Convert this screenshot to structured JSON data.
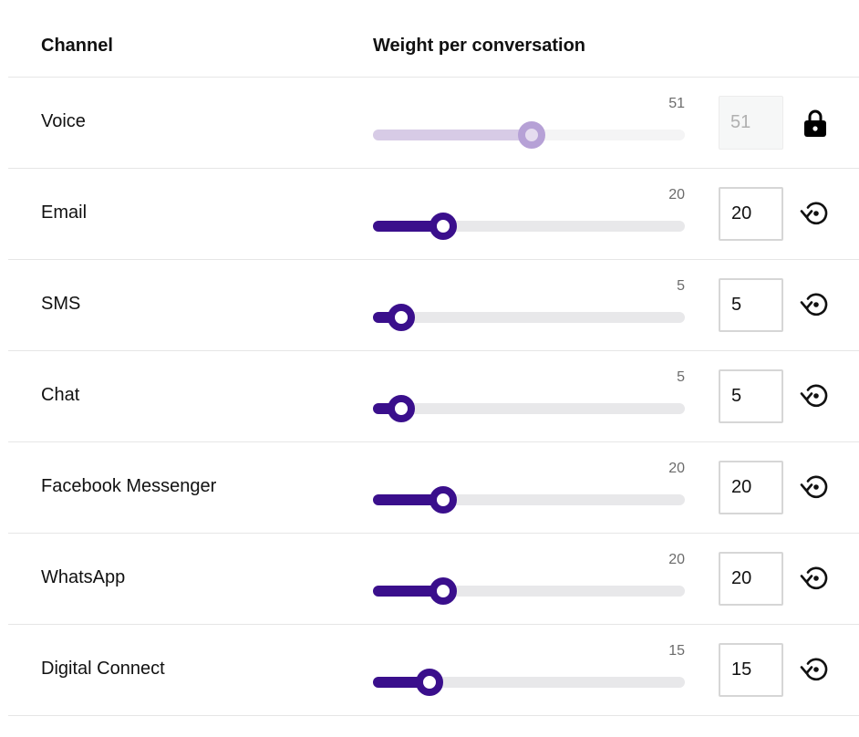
{
  "header": {
    "channel_label": "Channel",
    "weight_label": "Weight per conversation"
  },
  "slider": {
    "min": 0,
    "max": 100
  },
  "colors": {
    "accent": "#3a0f8c",
    "accent_disabled": "#b6a1d6",
    "track": "#e8e8ea"
  },
  "rows": [
    {
      "name": "Voice",
      "value": "51",
      "input_value": "51",
      "locked": true,
      "action_icon": "lock-icon"
    },
    {
      "name": "Email",
      "value": "20",
      "input_value": "20",
      "locked": false,
      "action_icon": "reset-icon"
    },
    {
      "name": "SMS",
      "value": "5",
      "input_value": "5",
      "locked": false,
      "action_icon": "reset-icon"
    },
    {
      "name": "Chat",
      "value": "5",
      "input_value": "5",
      "locked": false,
      "action_icon": "reset-icon"
    },
    {
      "name": "Facebook Messenger",
      "value": "20",
      "input_value": "20",
      "locked": false,
      "action_icon": "reset-icon"
    },
    {
      "name": "WhatsApp",
      "value": "20",
      "input_value": "20",
      "locked": false,
      "action_icon": "reset-icon"
    },
    {
      "name": "Digital Connect",
      "value": "15",
      "input_value": "15",
      "locked": false,
      "action_icon": "reset-icon"
    }
  ]
}
